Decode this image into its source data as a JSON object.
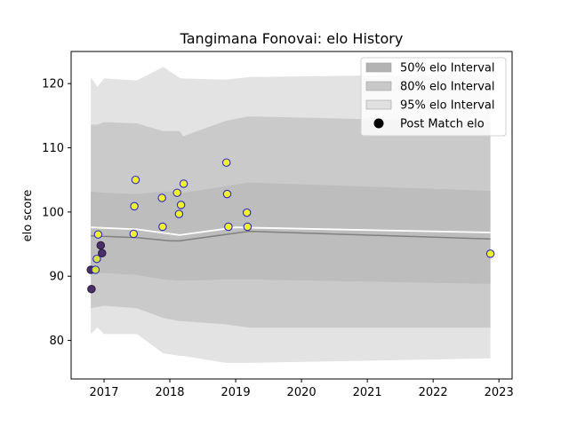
{
  "chart_data": {
    "type": "scatter",
    "title": "Tangimana Fonovai: elo History",
    "xlabel": "",
    "ylabel": "elo score",
    "xlim": [
      2016.5,
      2023.2
    ],
    "ylim": [
      74,
      125
    ],
    "x_ticks": [
      2017,
      2018,
      2019,
      2020,
      2021,
      2022,
      2023
    ],
    "x_tick_labels": [
      "2017",
      "2018",
      "2019",
      "2020",
      "2021",
      "2022",
      "2023"
    ],
    "y_ticks": [
      80,
      90,
      100,
      110,
      120
    ],
    "y_tick_labels": [
      "80",
      "90",
      "100",
      "110",
      "120"
    ],
    "grid": false,
    "legend_position": "top-right",
    "legend": [
      {
        "label": "50% elo Interval",
        "kind": "patch",
        "color": "#b3b3b3"
      },
      {
        "label": "80% elo Interval",
        "kind": "patch",
        "color": "#c8c8c8"
      },
      {
        "label": "95% elo Interval",
        "kind": "patch",
        "color": "#e0e0e0"
      },
      {
        "label": "Post Match elo",
        "kind": "marker",
        "color": "#000000"
      }
    ],
    "band_x": [
      2016.8,
      2016.9,
      2017.0,
      2017.5,
      2017.9,
      2018.15,
      2018.2,
      2018.85,
      2019.2,
      2022.87
    ],
    "bands": [
      {
        "name": "95% elo Interval",
        "color": "#e3e3e3",
        "upper": [
          121.0,
          119.5,
          120.8,
          120.5,
          122.6,
          120.9,
          120.8,
          120.6,
          121.0,
          121.5
        ],
        "lower": [
          81.0,
          82.0,
          81.0,
          81.0,
          78.0,
          77.6,
          77.6,
          76.5,
          76.5,
          77.2
        ]
      },
      {
        "name": "80% elo Interval",
        "color": "#cacaca",
        "upper": [
          113.6,
          113.6,
          114.0,
          113.8,
          112.6,
          112.6,
          111.8,
          114.2,
          114.9,
          114.0
        ],
        "lower": [
          85.0,
          85.2,
          85.4,
          85.0,
          83.5,
          83.0,
          83.0,
          82.5,
          82.0,
          82.0
        ]
      },
      {
        "name": "50% elo Interval",
        "color": "#bdbdbd",
        "upper": [
          103.2,
          103.1,
          103.0,
          102.8,
          103.2,
          103.2,
          103.0,
          104.0,
          104.6,
          103.3
        ],
        "lower": [
          90.5,
          90.5,
          90.5,
          90.2,
          89.5,
          89.3,
          89.3,
          89.5,
          89.5,
          88.8
        ]
      }
    ],
    "lines": [
      {
        "name": "mean",
        "color": "#ffffff",
        "width": 1.8,
        "x": [
          2016.8,
          2017.5,
          2018.15,
          2019.0,
          2022.87
        ],
        "y": [
          97.6,
          97.3,
          96.4,
          97.6,
          96.8
        ]
      },
      {
        "name": "median",
        "color": "#808080",
        "width": 1.5,
        "x": [
          2016.8,
          2017.5,
          2018.0,
          2018.15,
          2019.2,
          2022.87
        ],
        "y": [
          96.3,
          96.0,
          95.5,
          95.5,
          97.0,
          95.8
        ]
      }
    ],
    "series": [
      {
        "name": "Post Match elo",
        "points": [
          {
            "x": 2016.8,
            "y": 91.0,
            "color": "#4b2f6b"
          },
          {
            "x": 2016.81,
            "y": 88.0,
            "color": "#4b2f6b"
          },
          {
            "x": 2016.87,
            "y": 91.0,
            "color": "#d8e23c"
          },
          {
            "x": 2016.89,
            "y": 92.7,
            "color": "#d8e23c"
          },
          {
            "x": 2016.91,
            "y": 96.5,
            "color": "#f1f02a"
          },
          {
            "x": 2016.95,
            "y": 94.8,
            "color": "#4b2f6b"
          },
          {
            "x": 2016.97,
            "y": 93.6,
            "color": "#4b2f6b"
          },
          {
            "x": 2017.45,
            "y": 96.6,
            "color": "#f1f02a"
          },
          {
            "x": 2017.46,
            "y": 100.9,
            "color": "#f1f02a"
          },
          {
            "x": 2017.48,
            "y": 105.0,
            "color": "#f1f02a"
          },
          {
            "x": 2017.88,
            "y": 102.2,
            "color": "#f1f02a"
          },
          {
            "x": 2017.89,
            "y": 97.7,
            "color": "#f1f02a"
          },
          {
            "x": 2018.11,
            "y": 103.0,
            "color": "#f1f02a"
          },
          {
            "x": 2018.14,
            "y": 99.7,
            "color": "#f1f02a"
          },
          {
            "x": 2018.17,
            "y": 101.1,
            "color": "#f1f02a"
          },
          {
            "x": 2018.21,
            "y": 104.4,
            "color": "#f1f02a"
          },
          {
            "x": 2018.86,
            "y": 107.7,
            "color": "#f1f02a"
          },
          {
            "x": 2018.87,
            "y": 102.8,
            "color": "#f1f02a"
          },
          {
            "x": 2018.89,
            "y": 97.7,
            "color": "#f1f02a"
          },
          {
            "x": 2019.17,
            "y": 99.9,
            "color": "#f1f02a"
          },
          {
            "x": 2019.18,
            "y": 97.7,
            "color": "#f1f02a"
          },
          {
            "x": 2022.87,
            "y": 93.5,
            "color": "#f1f02a"
          }
        ]
      }
    ]
  }
}
